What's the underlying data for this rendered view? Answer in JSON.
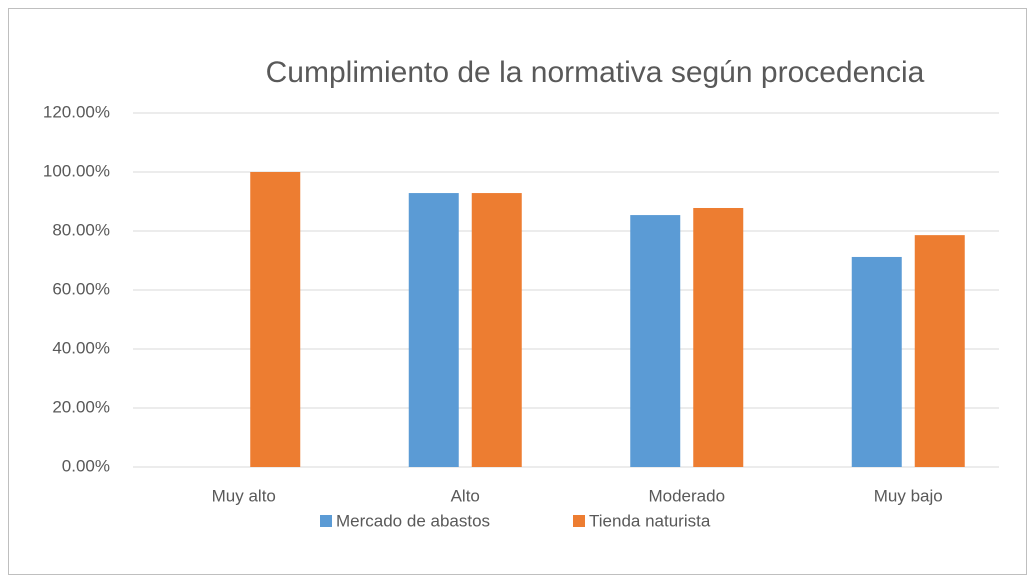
{
  "chart_data": {
    "type": "bar",
    "title": "Cumplimiento de la normativa según procedencia",
    "categories": [
      "Muy alto",
      "Alto",
      "Moderado",
      "Muy bajo"
    ],
    "series": [
      {
        "name": "Mercado de abastos",
        "color": "#5b9bd5",
        "values": [
          0,
          92.86,
          85.4,
          71.2
        ]
      },
      {
        "name": "Tienda naturista",
        "color": "#ed7d31",
        "values": [
          100,
          92.86,
          87.8,
          78.6
        ]
      }
    ],
    "ylim": [
      0,
      120
    ],
    "yticks": [
      {
        "value": 0,
        "label": "0.00%"
      },
      {
        "value": 20,
        "label": "20.00%"
      },
      {
        "value": 40,
        "label": "40.00%"
      },
      {
        "value": 60,
        "label": "60.00%"
      },
      {
        "value": 80,
        "label": "80.00%"
      },
      {
        "value": 100,
        "label": "100.00%"
      },
      {
        "value": 120,
        "label": "120.00%"
      }
    ],
    "grid": true,
    "legend": "bottom"
  }
}
